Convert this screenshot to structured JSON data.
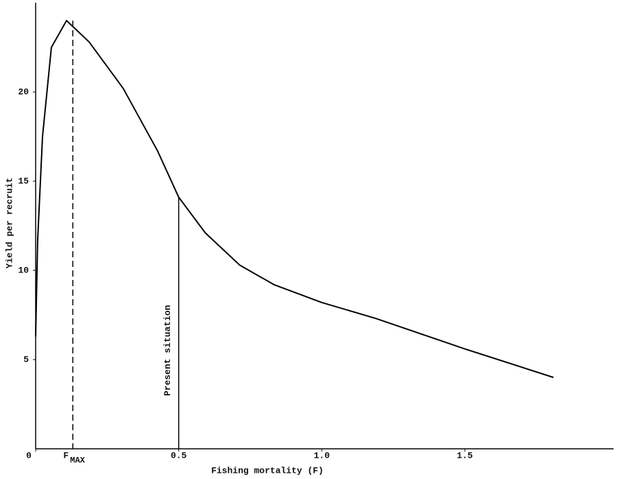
{
  "chart_data": {
    "type": "line",
    "x_label": "Fishing mortality (F)",
    "y_label": "Yield per recruit",
    "x": [
      0,
      0.007,
      0.024,
      0.055,
      0.108,
      0.187,
      0.306,
      0.426,
      0.5,
      0.593,
      0.713,
      0.833,
      1.0,
      1.19,
      1.5,
      1.81
    ],
    "series": [
      {
        "color": "#000000",
        "values": [
          6.3,
          11.7,
          17.5,
          22.5,
          24.0,
          22.8,
          20.2,
          16.7,
          14.1,
          12.1,
          10.3,
          9.2,
          8.2,
          7.3,
          5.6,
          4.0
        ]
      }
    ],
    "xlim": [
      0,
      2.02
    ],
    "ylim": [
      0,
      25
    ],
    "xticks": [
      0,
      0.5,
      {
        "value": 1.0,
        "label": "1.0"
      },
      1.5
    ],
    "yticks": [
      5,
      10,
      15,
      20
    ],
    "markers": [
      {
        "text": "F",
        "subscript": "MAX",
        "x": 0.13,
        "y": 24.0,
        "style": "dashed"
      },
      {
        "text": "Present situation",
        "x": 0.5,
        "y": 14.1,
        "style": "solid"
      }
    ]
  }
}
